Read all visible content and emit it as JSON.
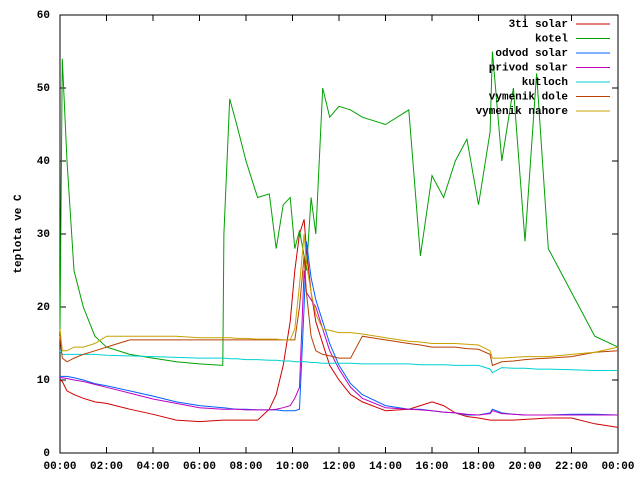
{
  "chart_data": {
    "type": "line",
    "ylabel": "teplota ve C",
    "x": [
      0,
      0.1,
      0.3,
      0.6,
      1,
      1.5,
      2,
      3,
      4,
      5,
      6,
      7,
      7.05,
      7.3,
      7.6,
      8,
      8.5,
      9,
      9.3,
      9.6,
      9.9,
      10.1,
      10.3,
      10.5,
      10.6,
      10.8,
      11,
      11.3,
      11.6,
      12,
      12.5,
      13,
      14,
      15,
      15.5,
      16,
      16.5,
      17,
      17.5,
      18,
      18.5,
      18.6,
      19,
      19.5,
      20,
      20.5,
      21,
      22,
      23,
      24
    ],
    "xlim": [
      0,
      24
    ],
    "xticks": [
      {
        "value": 0,
        "label": "00:00"
      },
      {
        "value": 2,
        "label": "02:00"
      },
      {
        "value": 4,
        "label": "04:00"
      },
      {
        "value": 6,
        "label": "06:00"
      },
      {
        "value": 8,
        "label": "08:00"
      },
      {
        "value": 10,
        "label": "10:00"
      },
      {
        "value": 12,
        "label": "12:00"
      },
      {
        "value": 14,
        "label": "14:00"
      },
      {
        "value": 16,
        "label": "16:00"
      },
      {
        "value": 18,
        "label": "18:00"
      },
      {
        "value": 20,
        "label": "20:00"
      },
      {
        "value": 22,
        "label": "22:00"
      },
      {
        "value": 24,
        "label": "00:00"
      }
    ],
    "ylim": [
      0,
      60
    ],
    "yticks": [
      0,
      10,
      20,
      30,
      40,
      50,
      60
    ],
    "legend": "top-right",
    "series": [
      {
        "name": "3ti solar",
        "color": "#d00000",
        "values": [
          10,
          9.8,
          8.5,
          8,
          7.5,
          7,
          6.8,
          6,
          5.3,
          4.5,
          4.3,
          4.5,
          4.5,
          4.5,
          4.5,
          4.5,
          4.5,
          6,
          8,
          12,
          18,
          25,
          30,
          32,
          28,
          22,
          18,
          15,
          12,
          10,
          8,
          7,
          5.8,
          6,
          6.5,
          7,
          6.5,
          5.5,
          5,
          4.8,
          4.5,
          4.5,
          4.5,
          4.5,
          4.6,
          4.7,
          4.8,
          4.8,
          4,
          3.5
        ]
      },
      {
        "name": "kotel",
        "color": "#00a000",
        "values": [
          17,
          54,
          40,
          25,
          20,
          16,
          14.5,
          13.5,
          13,
          12.5,
          12.2,
          12,
          30,
          48.5,
          45,
          40,
          35,
          35.5,
          28,
          34,
          35,
          28,
          30.5,
          27,
          25,
          35,
          30,
          50,
          46,
          47.5,
          47,
          46,
          45,
          47,
          27,
          38,
          35,
          40,
          43,
          34,
          44,
          55,
          40,
          50,
          29,
          52,
          28,
          22,
          16,
          14.5
        ]
      },
      {
        "name": "odvod solar",
        "color": "#0060ff",
        "values": [
          10.5,
          10.5,
          10.5,
          10.3,
          10,
          9.5,
          9.2,
          8.5,
          7.8,
          7,
          6.5,
          6.2,
          6.2,
          6.1,
          6,
          6,
          5.9,
          5.9,
          5.9,
          5.8,
          5.8,
          5.8,
          6,
          20,
          29,
          24,
          21,
          18,
          15,
          12,
          9.5,
          8,
          6.5,
          6,
          6,
          5.8,
          5.6,
          5.5,
          5.2,
          5.2,
          5.5,
          6,
          5.5,
          5.3,
          5.2,
          5.2,
          5.2,
          5.3,
          5.3,
          5.2
        ]
      },
      {
        "name": "privod solar",
        "color": "#c000c0",
        "values": [
          10.3,
          10.3,
          10.2,
          10,
          9.8,
          9.4,
          9,
          8.2,
          7.4,
          6.8,
          6.2,
          6,
          6,
          6,
          6,
          5.9,
          5.9,
          5.9,
          6,
          6.2,
          6.5,
          7.5,
          9,
          25,
          22,
          21,
          20,
          17,
          14,
          11.5,
          9,
          7.5,
          6.2,
          6,
          5.9,
          5.8,
          5.6,
          5.5,
          5.3,
          5.2,
          5.4,
          5.8,
          5.4,
          5.3,
          5.2,
          5.2,
          5.2,
          5.2,
          5.2,
          5.2
        ]
      },
      {
        "name": "kutloch",
        "color": "#00d0d0",
        "values": [
          14,
          13.5,
          13.5,
          13.5,
          13.5,
          13.5,
          13.4,
          13.3,
          13.2,
          13.1,
          13,
          13,
          13,
          12.9,
          12.9,
          12.8,
          12.8,
          12.7,
          12.7,
          12.6,
          12.6,
          12.5,
          12.5,
          12.5,
          12.5,
          12.4,
          12.4,
          12.3,
          12.3,
          12.3,
          12.3,
          12.2,
          12.2,
          12.2,
          12.1,
          12.1,
          12.1,
          12,
          12,
          12,
          11.5,
          11,
          11.7,
          11.6,
          11.6,
          11.5,
          11.5,
          11.4,
          11.3,
          11.3
        ]
      },
      {
        "name": "vymenik dole",
        "color": "#b84000",
        "values": [
          16,
          13,
          12.5,
          13,
          13.5,
          14,
          14.5,
          15.5,
          15.5,
          15.5,
          15.5,
          15.5,
          15.5,
          15.5,
          15.5,
          15.5,
          15.5,
          15.5,
          15.5,
          15.5,
          15.5,
          15.5,
          20,
          27,
          22,
          16,
          14,
          13.5,
          13.3,
          13,
          13,
          16,
          15.5,
          15,
          14.8,
          14.5,
          14.5,
          14.5,
          14.3,
          14.2,
          13.5,
          12,
          12.5,
          12.6,
          12.8,
          12.9,
          13,
          13.2,
          13.8,
          14
        ]
      },
      {
        "name": "vymenik nahore",
        "color": "#c8a000",
        "values": [
          17,
          14,
          14,
          14.5,
          14.5,
          15,
          16,
          16,
          16,
          16,
          15.8,
          15.8,
          15.8,
          15.8,
          15.7,
          15.7,
          15.6,
          15.6,
          15.6,
          15.5,
          15.5,
          17,
          23,
          30,
          26,
          22,
          19,
          17,
          16.8,
          16.5,
          16.5,
          16.3,
          15.8,
          15.3,
          15.2,
          15,
          15,
          15,
          14.9,
          14.8,
          14,
          13,
          13,
          13.1,
          13.2,
          13.2,
          13.2,
          13.5,
          13.8,
          14.5
        ]
      }
    ]
  }
}
